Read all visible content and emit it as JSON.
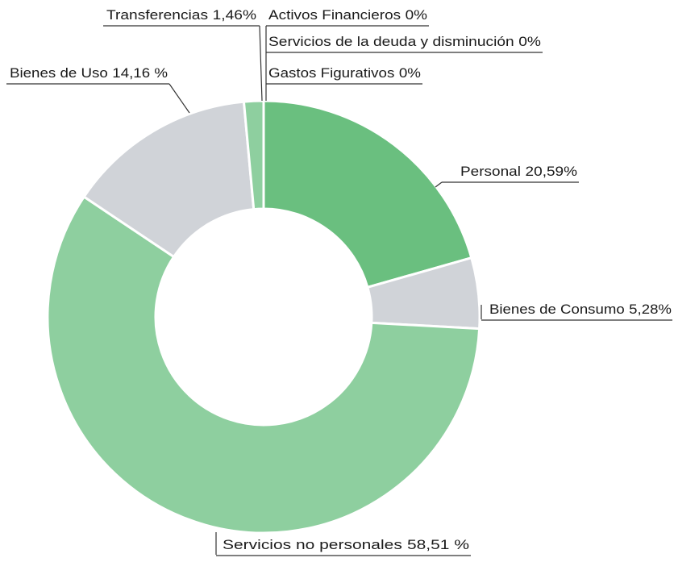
{
  "chart_data": {
    "type": "donut",
    "categories": [
      "Personal",
      "Bienes de Consumo",
      "Servicios no personales",
      "Bienes de Uso",
      "Transferencias",
      "Activos Financieros",
      "Servicios de la deuda y disminución",
      "Gastos Figurativos"
    ],
    "values": [
      20.59,
      5.28,
      58.51,
      14.16,
      1.46,
      0,
      0,
      0
    ],
    "value_labels": [
      "20,59%",
      "5,28%",
      "58,51 %",
      "14,16 %",
      "1,46%",
      "0%",
      "0%",
      "0%"
    ],
    "colors": [
      "#6abf7f",
      "#d0d3d8",
      "#8ecf9f",
      "#d0d3d8",
      "#8ecf9f",
      "#8ecf9f",
      "#8ecf9f",
      "#8ecf9f"
    ]
  }
}
